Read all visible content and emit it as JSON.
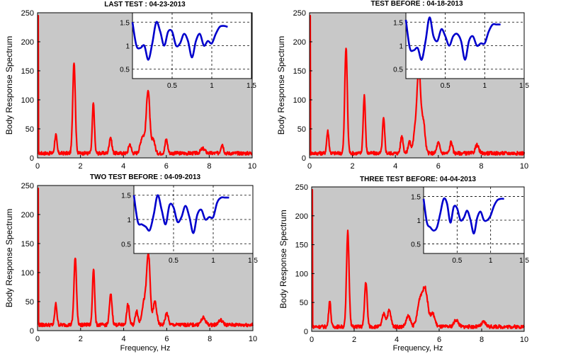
{
  "figure": {
    "colors": {
      "spectrum": "#ff0000",
      "inset": "#0000cc",
      "plot_bg": "#c8c8c8",
      "inset_bg": "#ffffff"
    }
  },
  "chart_data": [
    {
      "type": "line",
      "title": "LAST TEST : 04-23-2013",
      "ylabel": "Body Response Spectrum",
      "xlabel": "",
      "xlim": [
        0,
        10
      ],
      "ylim": [
        0,
        250
      ],
      "xticks": [
        "0",
        "2",
        "4",
        "6",
        "8",
        "10"
      ],
      "yticks": [
        "0",
        "50",
        "100",
        "150",
        "200",
        "250"
      ],
      "baseline": 8,
      "peaks": [
        [
          0.85,
          32,
          0.05
        ],
        [
          1.7,
          158,
          0.06
        ],
        [
          2.6,
          86,
          0.05
        ],
        [
          3.4,
          28,
          0.06
        ],
        [
          4.3,
          16,
          0.06
        ],
        [
          4.9,
          30,
          0.1
        ],
        [
          5.15,
          108,
          0.08
        ],
        [
          5.4,
          24,
          0.07
        ],
        [
          6.0,
          24,
          0.06
        ],
        [
          7.7,
          8,
          0.1
        ],
        [
          8.6,
          16,
          0.06
        ]
      ],
      "inset": {
        "xlim": [
          0,
          1.5
        ],
        "ylim": [
          0.3,
          1.7
        ],
        "xticks": [
          "0.5",
          "1",
          "1.5"
        ],
        "yticks": [
          "0.5",
          "1",
          "1.5"
        ],
        "x": [
          0.0,
          0.05,
          0.1,
          0.15,
          0.2,
          0.25,
          0.3,
          0.35,
          0.4,
          0.45,
          0.5,
          0.55,
          0.6,
          0.65,
          0.7,
          0.75,
          0.8,
          0.85,
          0.9,
          0.95,
          1.0,
          1.05,
          1.1,
          1.15,
          1.2
        ],
        "y": [
          1.5,
          1.0,
          0.95,
          1.0,
          0.7,
          1.05,
          1.5,
          1.3,
          1.0,
          1.3,
          1.3,
          1.0,
          1.05,
          1.25,
          1.1,
          0.75,
          1.1,
          1.25,
          1.0,
          1.1,
          1.05,
          1.25,
          1.4,
          1.42,
          1.4
        ]
      }
    },
    {
      "type": "line",
      "title": "TEST BEFORE : 04-18-2013",
      "ylabel": "Body Response Spectrum",
      "xlabel": "",
      "xlim": [
        0,
        10
      ],
      "ylim": [
        0,
        250
      ],
      "xticks": [
        "0",
        "2",
        "4",
        "6",
        "8",
        "10"
      ],
      "yticks": [
        "0",
        "50",
        "100",
        "150",
        "200",
        "250"
      ],
      "baseline": 8,
      "peaks": [
        [
          0.85,
          38,
          0.05
        ],
        [
          1.7,
          182,
          0.06
        ],
        [
          2.55,
          100,
          0.05
        ],
        [
          3.45,
          60,
          0.05
        ],
        [
          4.3,
          30,
          0.06
        ],
        [
          4.65,
          20,
          0.06
        ],
        [
          4.95,
          45,
          0.1
        ],
        [
          5.1,
          132,
          0.08
        ],
        [
          5.3,
          55,
          0.08
        ],
        [
          6.0,
          18,
          0.07
        ],
        [
          6.6,
          20,
          0.06
        ],
        [
          7.8,
          14,
          0.08
        ]
      ],
      "inset": {
        "xlim": [
          0,
          1.5
        ],
        "ylim": [
          0.3,
          1.7
        ],
        "xticks": [
          "0.5",
          "1",
          "1.5"
        ],
        "yticks": [
          "0.5",
          "1",
          "1.5"
        ],
        "x": [
          0.0,
          0.05,
          0.1,
          0.15,
          0.2,
          0.25,
          0.3,
          0.35,
          0.4,
          0.45,
          0.5,
          0.55,
          0.6,
          0.65,
          0.7,
          0.75,
          0.8,
          0.85,
          0.9,
          0.95,
          1.0,
          1.05,
          1.1,
          1.15,
          1.2
        ],
        "y": [
          1.55,
          0.95,
          0.9,
          0.95,
          0.7,
          1.1,
          1.6,
          1.2,
          1.1,
          1.35,
          1.2,
          1.0,
          1.2,
          1.25,
          1.1,
          0.7,
          1.1,
          1.2,
          1.0,
          1.05,
          1.05,
          1.3,
          1.45,
          1.45,
          1.45
        ]
      }
    },
    {
      "type": "line",
      "title": "TWO TEST BEFORE : 04-09-2013",
      "ylabel": "Body Response Spectrum",
      "xlabel": "Frequency, Hz",
      "xlim": [
        0,
        10
      ],
      "ylim": [
        0,
        250
      ],
      "xticks": [
        "0",
        "2",
        "4",
        "6",
        "8",
        "10"
      ],
      "yticks": [
        "0",
        "50",
        "100",
        "150",
        "200",
        "250"
      ],
      "baseline": 10,
      "peaks": [
        [
          0.85,
          36,
          0.05
        ],
        [
          1.75,
          115,
          0.06
        ],
        [
          2.6,
          98,
          0.05
        ],
        [
          3.4,
          52,
          0.06
        ],
        [
          4.2,
          35,
          0.06
        ],
        [
          4.6,
          25,
          0.06
        ],
        [
          4.95,
          40,
          0.1
        ],
        [
          5.15,
          118,
          0.08
        ],
        [
          5.45,
          40,
          0.08
        ],
        [
          6.0,
          20,
          0.07
        ],
        [
          7.7,
          12,
          0.1
        ],
        [
          8.5,
          8,
          0.1
        ]
      ],
      "inset": {
        "xlim": [
          0,
          1.5
        ],
        "ylim": [
          0.3,
          1.7
        ],
        "xticks": [
          "0.5",
          "1",
          "1.5"
        ],
        "yticks": [
          "0.5",
          "1",
          "1.5"
        ],
        "x": [
          0.0,
          0.05,
          0.1,
          0.15,
          0.2,
          0.25,
          0.3,
          0.35,
          0.4,
          0.45,
          0.5,
          0.55,
          0.6,
          0.65,
          0.7,
          0.75,
          0.8,
          0.85,
          0.9,
          0.95,
          1.0,
          1.05,
          1.1,
          1.15,
          1.2
        ],
        "y": [
          1.5,
          0.95,
          0.9,
          0.85,
          0.78,
          1.1,
          1.5,
          1.2,
          0.9,
          1.3,
          1.25,
          0.95,
          1.05,
          1.28,
          1.05,
          0.72,
          1.1,
          1.2,
          1.0,
          1.05,
          1.05,
          1.35,
          1.45,
          1.45,
          1.45
        ]
      }
    },
    {
      "type": "line",
      "title": "THREE TEST BEFORE:   04-04-2013",
      "ylabel": "Body Response Spectrum",
      "xlabel": "Frequency, Hz",
      "xlim": [
        0,
        10
      ],
      "ylim": [
        0,
        250
      ],
      "xticks": [
        "0",
        "2",
        "4",
        "6",
        "8",
        "10"
      ],
      "yticks": [
        "0",
        "50",
        "100",
        "150",
        "200",
        "250"
      ],
      "baseline": 8,
      "peaks": [
        [
          0.85,
          45,
          0.05
        ],
        [
          1.7,
          165,
          0.06
        ],
        [
          2.55,
          78,
          0.06
        ],
        [
          3.4,
          22,
          0.08
        ],
        [
          3.65,
          28,
          0.08
        ],
        [
          4.55,
          18,
          0.1
        ],
        [
          5.1,
          45,
          0.12
        ],
        [
          5.35,
          62,
          0.12
        ],
        [
          5.7,
          22,
          0.1
        ],
        [
          6.8,
          12,
          0.1
        ],
        [
          8.1,
          8,
          0.1
        ]
      ],
      "inset": {
        "xlim": [
          0,
          1.5
        ],
        "ylim": [
          0.3,
          1.7
        ],
        "xticks": [
          "0.5",
          "1",
          "1.5"
        ],
        "yticks": [
          "0.5",
          "1",
          "1.5"
        ],
        "x": [
          0.0,
          0.05,
          0.1,
          0.15,
          0.2,
          0.25,
          0.3,
          0.35,
          0.4,
          0.45,
          0.5,
          0.55,
          0.6,
          0.65,
          0.7,
          0.75,
          0.8,
          0.85,
          0.9,
          0.95,
          1.0,
          1.05,
          1.1,
          1.15,
          1.2
        ],
        "y": [
          1.45,
          0.95,
          0.85,
          0.78,
          0.85,
          1.15,
          1.45,
          1.35,
          0.95,
          1.28,
          1.25,
          1.0,
          1.05,
          1.2,
          1.0,
          0.72,
          1.05,
          1.18,
          1.0,
          1.0,
          1.1,
          1.3,
          1.42,
          1.45,
          1.45
        ]
      }
    }
  ]
}
